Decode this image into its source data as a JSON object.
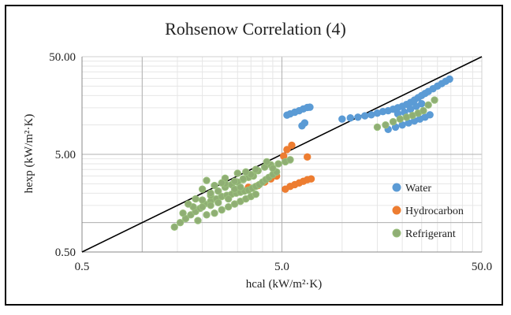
{
  "chart_data": {
    "type": "scatter",
    "title": "Rohsenow Correlation  (4)",
    "xlabel": "hcal (kW/m²·K)",
    "ylabel": "hexp (kW/m²·K)",
    "x_scale": "log",
    "y_scale": "log",
    "xlim": [
      0.5,
      50.0
    ],
    "ylim": [
      0.5,
      50.0
    ],
    "x_ticks": [
      "0.5",
      "5.0",
      "50.0"
    ],
    "y_ticks": [
      "0.50",
      "5.00",
      "50.00"
    ],
    "grid": true,
    "legend_position": "right",
    "reference_line": "y = x",
    "series": [
      {
        "name": "Water",
        "color": "#5b9bd5",
        "points": [
          [
            5.3,
            12.6
          ],
          [
            5.5,
            13.0
          ],
          [
            5.8,
            13.5
          ],
          [
            6.1,
            14.0
          ],
          [
            6.4,
            14.6
          ],
          [
            6.7,
            15.1
          ],
          [
            6.9,
            15.2
          ],
          [
            6.3,
            9.8
          ],
          [
            6.5,
            10.5
          ],
          [
            10.0,
            11.5
          ],
          [
            11.0,
            11.8
          ],
          [
            12.0,
            12.0
          ],
          [
            13.0,
            12.4
          ],
          [
            14.0,
            12.7
          ],
          [
            15.0,
            13.2
          ],
          [
            16.0,
            13.7
          ],
          [
            17.0,
            14.0
          ],
          [
            18.0,
            14.5
          ],
          [
            19.0,
            15.0
          ],
          [
            20.0,
            15.5
          ],
          [
            21.0,
            16.2
          ],
          [
            22.0,
            17.0
          ],
          [
            23.0,
            18.0
          ],
          [
            24.0,
            19.0
          ],
          [
            25.0,
            20.0
          ],
          [
            26.0,
            21.0
          ],
          [
            27.0,
            22.0
          ],
          [
            28.5,
            23.5
          ],
          [
            30.0,
            25.0
          ],
          [
            31.5,
            26.5
          ],
          [
            33.0,
            28.0
          ],
          [
            34.5,
            29.5
          ],
          [
            17.0,
            9.0
          ],
          [
            18.5,
            9.5
          ],
          [
            20.0,
            10.0
          ],
          [
            21.5,
            10.5
          ],
          [
            23.0,
            11.0
          ],
          [
            24.5,
            11.5
          ],
          [
            26.0,
            12.0
          ],
          [
            27.5,
            12.7
          ],
          [
            19.0,
            13.0
          ],
          [
            20.5,
            13.5
          ],
          [
            22.0,
            14.5
          ],
          [
            23.5,
            15.5
          ],
          [
            25.0,
            16.5
          ]
        ]
      },
      {
        "name": "Hydrocarbon",
        "color": "#ed7d31",
        "points": [
          [
            5.2,
            2.2
          ],
          [
            5.5,
            2.35
          ],
          [
            5.8,
            2.45
          ],
          [
            6.1,
            2.55
          ],
          [
            6.4,
            2.65
          ],
          [
            6.7,
            2.75
          ],
          [
            7.0,
            2.8
          ],
          [
            5.3,
            5.6
          ],
          [
            5.6,
            6.2
          ],
          [
            5.1,
            4.8
          ],
          [
            6.7,
            4.7
          ],
          [
            3.8,
            2.4
          ],
          [
            4.1,
            2.6
          ],
          [
            4.4,
            2.8
          ],
          [
            4.7,
            3.0
          ],
          [
            3.4,
            2.3
          ]
        ]
      },
      {
        "name": "Refrigerant",
        "color": "#8fae74",
        "points": [
          [
            1.45,
            0.9
          ],
          [
            1.55,
            1.0
          ],
          [
            1.65,
            1.1
          ],
          [
            1.75,
            1.2
          ],
          [
            1.85,
            1.3
          ],
          [
            1.95,
            1.4
          ],
          [
            2.05,
            1.55
          ],
          [
            2.2,
            1.65
          ],
          [
            2.35,
            1.75
          ],
          [
            2.5,
            1.85
          ],
          [
            2.65,
            1.9
          ],
          [
            2.8,
            1.95
          ],
          [
            2.95,
            2.0
          ],
          [
            3.1,
            2.05
          ],
          [
            3.25,
            2.1
          ],
          [
            3.4,
            2.15
          ],
          [
            3.55,
            2.25
          ],
          [
            3.7,
            2.35
          ],
          [
            3.85,
            2.45
          ],
          [
            4.0,
            2.6
          ],
          [
            4.15,
            2.75
          ],
          [
            4.3,
            2.9
          ],
          [
            4.5,
            3.1
          ],
          [
            4.7,
            3.3
          ],
          [
            1.6,
            1.25
          ],
          [
            1.8,
            1.45
          ],
          [
            2.0,
            1.7
          ],
          [
            2.2,
            1.9
          ],
          [
            2.4,
            2.1
          ],
          [
            2.6,
            2.3
          ],
          [
            2.8,
            2.45
          ],
          [
            3.0,
            2.6
          ],
          [
            3.2,
            2.75
          ],
          [
            3.4,
            2.9
          ],
          [
            3.6,
            3.0
          ],
          [
            2.0,
            2.2
          ],
          [
            2.3,
            2.4
          ],
          [
            2.6,
            2.5
          ],
          [
            2.9,
            2.65
          ],
          [
            3.2,
            2.8
          ],
          [
            3.5,
            3.1
          ],
          [
            3.8,
            3.4
          ],
          [
            4.1,
            3.7
          ],
          [
            4.4,
            3.9
          ],
          [
            4.8,
            4.0
          ],
          [
            5.2,
            4.2
          ],
          [
            1.9,
            1.05
          ],
          [
            2.1,
            1.2
          ],
          [
            2.3,
            1.25
          ],
          [
            2.5,
            1.35
          ],
          [
            2.7,
            1.45
          ],
          [
            2.9,
            1.55
          ],
          [
            3.1,
            1.65
          ],
          [
            3.3,
            1.75
          ],
          [
            3.5,
            1.85
          ],
          [
            3.7,
            1.95
          ],
          [
            2.1,
            2.7
          ],
          [
            2.6,
            2.85
          ],
          [
            3.0,
            3.2
          ],
          [
            3.3,
            3.3
          ],
          [
            3.7,
            3.5
          ],
          [
            4.2,
            4.2
          ],
          [
            4.5,
            3.6
          ],
          [
            5.5,
            4.4
          ],
          [
            1.7,
            1.55
          ],
          [
            2.0,
            1.45
          ],
          [
            2.4,
            1.6
          ],
          [
            2.2,
            2.0
          ],
          [
            2.7,
            1.75
          ],
          [
            2.9,
            2.2
          ],
          [
            3.1,
            2.3
          ],
          [
            2.5,
            2.55
          ],
          [
            1.85,
            1.75
          ],
          [
            2.2,
            1.5
          ],
          [
            15.0,
            9.5
          ],
          [
            16.5,
            10.0
          ],
          [
            18.0,
            10.8
          ],
          [
            19.5,
            11.5
          ],
          [
            21.0,
            12.0
          ],
          [
            22.5,
            12.5
          ],
          [
            24.0,
            13.2
          ],
          [
            25.5,
            14.0
          ],
          [
            27.0,
            16.0
          ],
          [
            29.0,
            18.0
          ]
        ]
      }
    ]
  }
}
